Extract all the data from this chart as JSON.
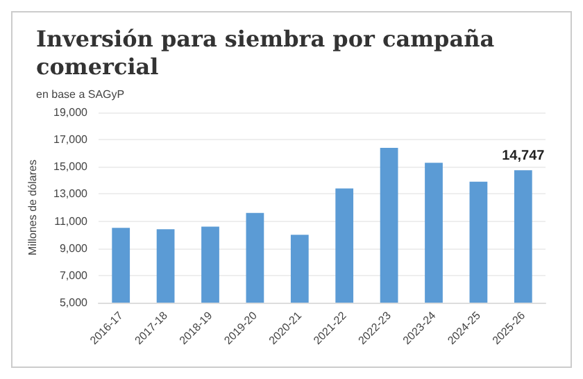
{
  "chart_data": {
    "type": "bar",
    "title": "Inversión para siembra por campaña\ncomercial",
    "subtitle": "en base a SAGyP",
    "ylabel": "Millones de dólares",
    "categories": [
      "2016-17",
      "2017-18",
      "2018-19",
      "2019-20",
      "2020-21",
      "2021-22",
      "2022-23",
      "2023-24",
      "2024-25",
      "2025-26"
    ],
    "values": [
      10500,
      10400,
      10600,
      11600,
      10000,
      13400,
      16400,
      15300,
      13900,
      14747
    ],
    "value_labels": [
      null,
      null,
      null,
      null,
      null,
      null,
      null,
      null,
      null,
      "14,747"
    ],
    "color": "#5b9bd5",
    "ylim": [
      5000,
      19000
    ],
    "yticks": [
      {
        "value": 5000,
        "label": "5,000"
      },
      {
        "value": 7000,
        "label": "7,000"
      },
      {
        "value": 9000,
        "label": "9,000"
      },
      {
        "value": 11000,
        "label": "11,000"
      },
      {
        "value": 13000,
        "label": "13,000"
      },
      {
        "value": 15000,
        "label": "15,000"
      },
      {
        "value": 17000,
        "label": "17,000"
      },
      {
        "value": 19000,
        "label": "19,000"
      }
    ],
    "grid": "y"
  }
}
